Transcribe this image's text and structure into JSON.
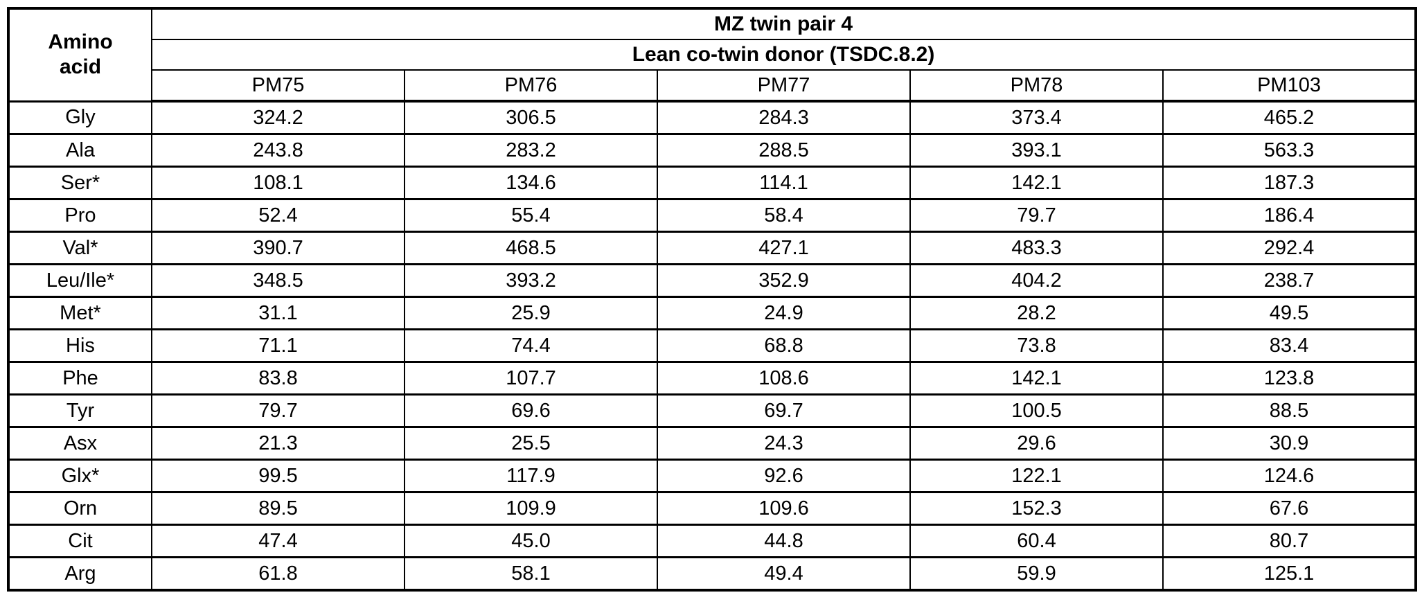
{
  "table": {
    "corner_header": "Amino\nacid",
    "group_header": "MZ twin pair 4",
    "subgroup_header": "Lean co-twin donor (TSDC.8.2)",
    "columns": [
      "PM75",
      "PM76",
      "PM77",
      "PM78",
      "PM103"
    ],
    "rows": [
      {
        "label": "Gly",
        "values": [
          "324.2",
          "306.5",
          "284.3",
          "373.4",
          "465.2"
        ]
      },
      {
        "label": "Ala",
        "values": [
          "243.8",
          "283.2",
          "288.5",
          "393.1",
          "563.3"
        ]
      },
      {
        "label": "Ser*",
        "values": [
          "108.1",
          "134.6",
          "114.1",
          "142.1",
          "187.3"
        ]
      },
      {
        "label": "Pro",
        "values": [
          "52.4",
          "55.4",
          "58.4",
          "79.7",
          "186.4"
        ]
      },
      {
        "label": "Val*",
        "values": [
          "390.7",
          "468.5",
          "427.1",
          "483.3",
          "292.4"
        ]
      },
      {
        "label": "Leu/Ile*",
        "values": [
          "348.5",
          "393.2",
          "352.9",
          "404.2",
          "238.7"
        ]
      },
      {
        "label": "Met*",
        "values": [
          "31.1",
          "25.9",
          "24.9",
          "28.2",
          "49.5"
        ]
      },
      {
        "label": "His",
        "values": [
          "71.1",
          "74.4",
          "68.8",
          "73.8",
          "83.4"
        ]
      },
      {
        "label": "Phe",
        "values": [
          "83.8",
          "107.7",
          "108.6",
          "142.1",
          "123.8"
        ]
      },
      {
        "label": "Tyr",
        "values": [
          "79.7",
          "69.6",
          "69.7",
          "100.5",
          "88.5"
        ]
      },
      {
        "label": "Asx",
        "values": [
          "21.3",
          "25.5",
          "24.3",
          "29.6",
          "30.9"
        ]
      },
      {
        "label": "Glx*",
        "values": [
          "99.5",
          "117.9",
          "92.6",
          "122.1",
          "124.6"
        ]
      },
      {
        "label": "Orn",
        "values": [
          "89.5",
          "109.9",
          "109.6",
          "152.3",
          "67.6"
        ]
      },
      {
        "label": "Cit",
        "values": [
          "47.4",
          "45.0",
          "44.8",
          "60.4",
          "80.7"
        ]
      },
      {
        "label": "Arg",
        "values": [
          "61.8",
          "58.1",
          "49.4",
          "59.9",
          "125.1"
        ]
      }
    ]
  },
  "colors": {
    "border": "#000000",
    "text": "#000000",
    "background": "#ffffff"
  }
}
